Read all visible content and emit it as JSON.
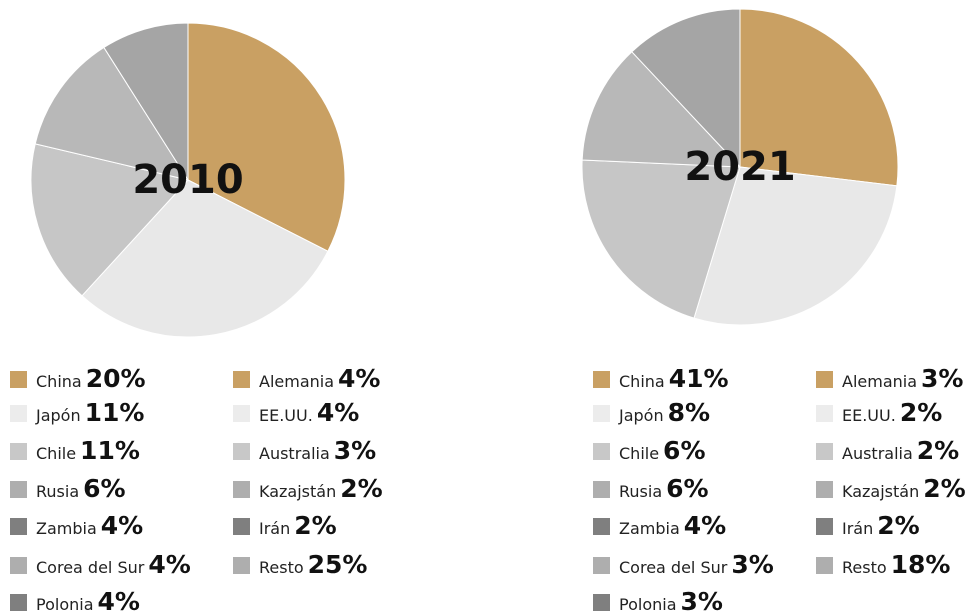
{
  "chart_data": [
    {
      "type": "pie",
      "title": "2010",
      "values": [
        32.5,
        29.3,
        16.9,
        12.3,
        9.0
      ],
      "colors": [
        "#c9a063",
        "#e8e8e8",
        "#c6c6c6",
        "#b8b8b8",
        "#a5a5a5"
      ],
      "legend": {
        "names": [
          "China",
          "Japón",
          "Chile",
          "Rusia",
          "Zambia",
          "Corea del Sur",
          "Polonia",
          "Alemania",
          "EE.UU.",
          "Australia",
          "Kazajstán",
          "Irán",
          "Resto"
        ],
        "values": [
          20,
          11,
          11,
          6,
          4,
          4,
          4,
          4,
          4,
          3,
          2,
          2,
          25
        ],
        "value_labels": [
          "20%",
          "11%",
          "11%",
          "6%",
          "4%",
          "4%",
          "4%",
          "4%",
          "4%",
          "3%",
          "2%",
          "2%",
          "25%"
        ],
        "colors": [
          "#c9a063",
          "#ececec",
          "#c8c8c8",
          "#aeaeae",
          "#7f7f7f",
          "#aeaeae",
          "#7f7f7f",
          "#c9a063",
          "#ececec",
          "#c8c8c8",
          "#aeaeae",
          "#7f7f7f",
          "#aeaeae"
        ]
      }
    },
    {
      "type": "pie",
      "title": "2021",
      "values": [
        26.9,
        27.8,
        21.0,
        12.3,
        12.0
      ],
      "colors": [
        "#c9a063",
        "#e8e8e8",
        "#c6c6c6",
        "#b8b8b8",
        "#a5a5a5"
      ],
      "legend": {
        "names": [
          "China",
          "Japón",
          "Chile",
          "Rusia",
          "Zambia",
          "Corea del Sur",
          "Polonia",
          "Alemania",
          "EE.UU.",
          "Australia",
          "Kazajstán",
          "Irán",
          "Resto"
        ],
        "values": [
          41,
          8,
          6,
          6,
          4,
          3,
          3,
          3,
          2,
          2,
          2,
          2,
          18
        ],
        "value_labels": [
          "41%",
          "8%",
          "6%",
          "6%",
          "4%",
          "3%",
          "3%",
          "3%",
          "2%",
          "2%",
          "2%",
          "2%",
          "18%"
        ],
        "colors": [
          "#c9a063",
          "#ececec",
          "#c8c8c8",
          "#aeaeae",
          "#7f7f7f",
          "#aeaeae",
          "#7f7f7f",
          "#c9a063",
          "#ececec",
          "#c8c8c8",
          "#aeaeae",
          "#7f7f7f",
          "#aeaeae"
        ]
      }
    }
  ]
}
